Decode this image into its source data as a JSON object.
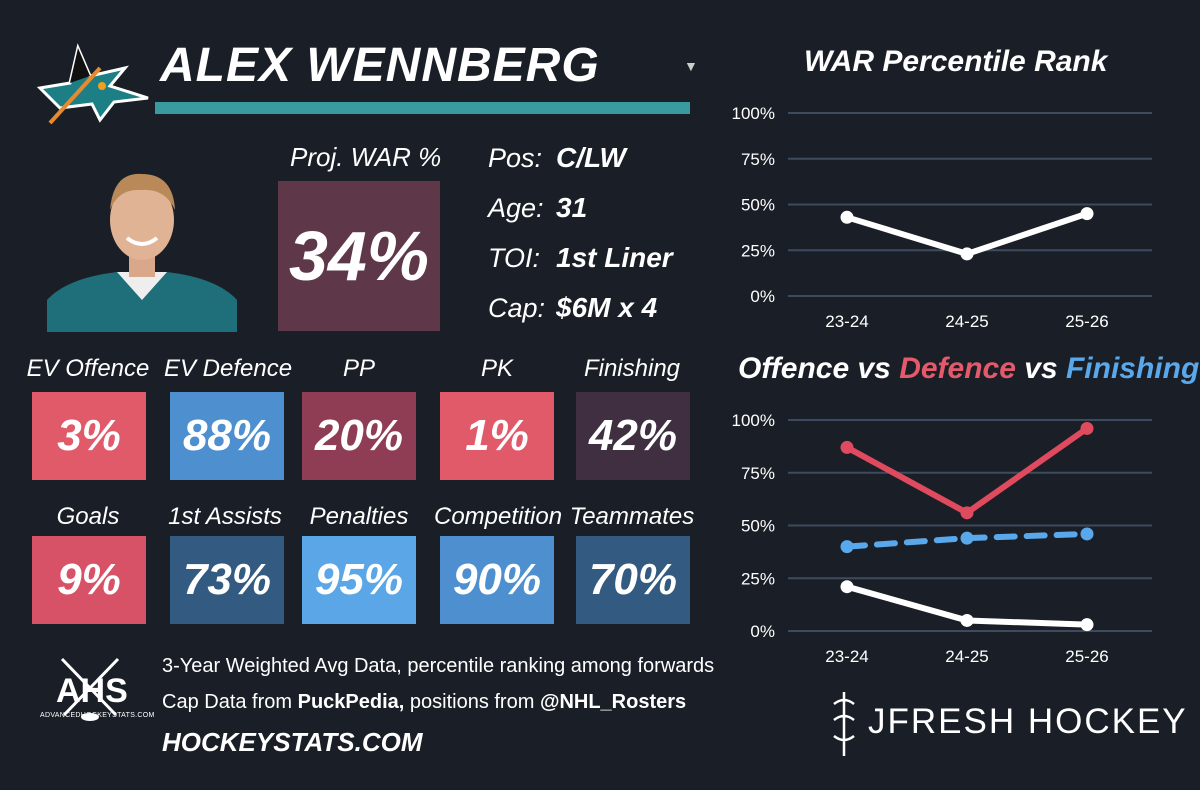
{
  "player": {
    "name": "ALEX WENNBERG",
    "proj_war_label": "Proj. WAR %",
    "proj_war_value": "34%",
    "bio": [
      {
        "label": "Pos:",
        "value": "C/LW"
      },
      {
        "label": "Age:",
        "value": "31"
      },
      {
        "label": "TOI:",
        "value": "1st Liner"
      },
      {
        "label": "Cap:",
        "value": "$6M x 4"
      }
    ]
  },
  "stats": [
    {
      "label": "EV Offence",
      "value": "3%",
      "color": "#e15a6a"
    },
    {
      "label": "EV Defence",
      "value": "88%",
      "color": "#4d8fcf"
    },
    {
      "label": "PP",
      "value": "20%",
      "color": "#8f3d55"
    },
    {
      "label": "PK",
      "value": "1%",
      "color": "#e15a6a"
    },
    {
      "label": "Finishing",
      "value": "42%",
      "color": "#3f2f41"
    },
    {
      "label": "Goals",
      "value": "9%",
      "color": "#d75266"
    },
    {
      "label": "1st Assists",
      "value": "73%",
      "color": "#335a80"
    },
    {
      "label": "Penalties",
      "value": "95%",
      "color": "#5aa6e6"
    },
    {
      "label": "Competition",
      "value": "90%",
      "color": "#4d8fcf"
    },
    {
      "label": "Teammates",
      "value": "70%",
      "color": "#335a80"
    }
  ],
  "footer": {
    "line1": "3-Year Weighted Avg Data, percentile ranking among forwards",
    "line2_pre": "Cap Data from ",
    "line2_b1": "PuckPedia,",
    "line2_mid": " positions from ",
    "line2_b2": "@NHL_Rosters",
    "site": "HOCKEYSTATS.COM",
    "brand": "JFRESH HOCKEY",
    "ahs": "AHS",
    "ahs_small": "ADVANCEDHOCKEYSTATS.COM"
  },
  "chart_data": [
    {
      "type": "line",
      "title": "WAR Percentile Rank",
      "categories": [
        "23-24",
        "24-25",
        "25-26"
      ],
      "ylim": [
        0,
        100
      ],
      "yticks": [
        "0%",
        "25%",
        "50%",
        "75%",
        "100%"
      ],
      "series": [
        {
          "name": "WAR",
          "values": [
            43,
            23,
            45
          ],
          "color": "#ffffff",
          "dashed": false
        }
      ]
    },
    {
      "type": "line",
      "title": "Offence vs Defence vs Finishing",
      "title_parts": [
        "Offence",
        " vs ",
        "Defence",
        " vs ",
        "Finishing"
      ],
      "categories": [
        "23-24",
        "24-25",
        "25-26"
      ],
      "ylim": [
        0,
        100
      ],
      "yticks": [
        "0%",
        "25%",
        "50%",
        "75%",
        "100%"
      ],
      "series": [
        {
          "name": "Defence",
          "values": [
            87,
            56,
            96
          ],
          "color": "#e04a5e",
          "dashed": false
        },
        {
          "name": "Finishing",
          "values": [
            40,
            44,
            46
          ],
          "color": "#5aa8ec",
          "dashed": true
        },
        {
          "name": "Offence",
          "values": [
            21,
            5,
            3
          ],
          "color": "#ffffff",
          "dashed": false
        }
      ]
    }
  ]
}
